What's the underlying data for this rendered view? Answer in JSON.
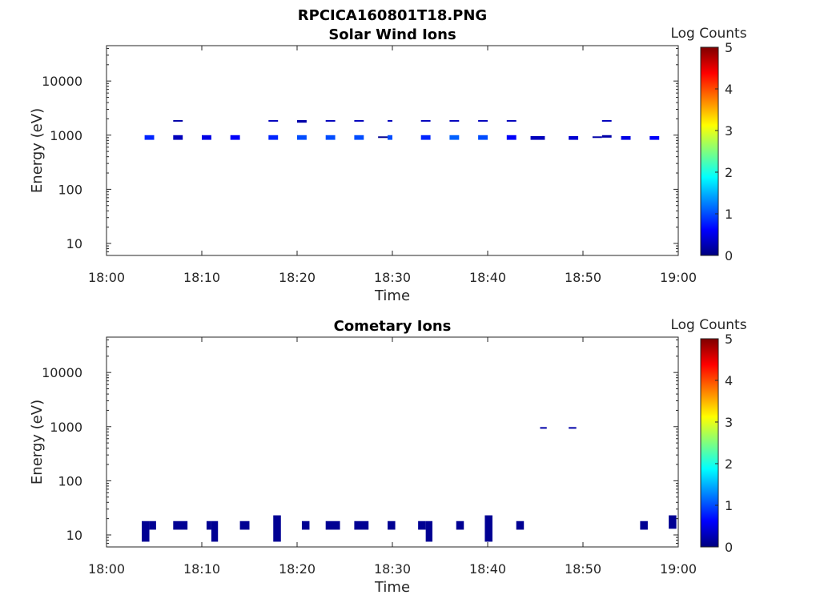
{
  "figure_title": "RPCICA160801T18.PNG",
  "colors": {
    "cmap": [
      "#00007f",
      "#0000ff",
      "#007fff",
      "#00ffff",
      "#7fff7f",
      "#ffff00",
      "#ff7f00",
      "#ff0000",
      "#7f0000"
    ],
    "axis": "#262626"
  },
  "chart_data": [
    {
      "type": "heatmap",
      "title": "Solar Wind Ions",
      "xlabel": "Time",
      "ylabel": "Energy (eV)",
      "xlim": [
        "18:00",
        "19:00"
      ],
      "xticks": [
        "18:00",
        "18:10",
        "18:20",
        "18:30",
        "18:40",
        "18:50",
        "19:00"
      ],
      "yscale": "log",
      "ylim": [
        6,
        45000
      ],
      "yticks": [
        10,
        100,
        1000,
        10000
      ],
      "ytick_labels": [
        "10",
        "100",
        "1000",
        "10000"
      ],
      "colorbar": {
        "label": "Log Counts",
        "range": [
          0,
          5
        ],
        "ticks": [
          "0",
          "1",
          "2",
          "3",
          "4",
          "5"
        ]
      },
      "cells": [
        {
          "t0": "18:04",
          "t1": "18:05",
          "e0": 820,
          "e1": 1000,
          "value": 0.8
        },
        {
          "t0": "18:07",
          "t1": "18:08",
          "e0": 1800,
          "e1": 1900,
          "value": 0.2
        },
        {
          "t0": "18:07",
          "t1": "18:08",
          "e0": 820,
          "e1": 1000,
          "value": 0.3
        },
        {
          "t0": "18:10",
          "t1": "18:11",
          "e0": 820,
          "e1": 1000,
          "value": 0.5
        },
        {
          "t0": "18:13",
          "t1": "18:14",
          "e0": 820,
          "e1": 1000,
          "value": 0.6
        },
        {
          "t0": "18:17",
          "t1": "18:18",
          "e0": 1800,
          "e1": 1900,
          "value": 0.3
        },
        {
          "t0": "18:17",
          "t1": "18:18",
          "e0": 820,
          "e1": 1000,
          "value": 0.8
        },
        {
          "t0": "18:20",
          "t1": "18:21",
          "e0": 1700,
          "e1": 1900,
          "value": 0.2
        },
        {
          "t0": "18:20",
          "t1": "18:21",
          "e0": 820,
          "e1": 1000,
          "value": 1.0
        },
        {
          "t0": "18:23",
          "t1": "18:24",
          "e0": 1800,
          "e1": 1900,
          "value": 0.3
        },
        {
          "t0": "18:23",
          "t1": "18:24",
          "e0": 820,
          "e1": 1000,
          "value": 1.0
        },
        {
          "t0": "18:26",
          "t1": "18:27",
          "e0": 1800,
          "e1": 1900,
          "value": 0.3
        },
        {
          "t0": "18:26",
          "t1": "18:27",
          "e0": 820,
          "e1": 1000,
          "value": 1.0
        },
        {
          "t0": "18:28.5",
          "t1": "18:29.5",
          "e0": 900,
          "e1": 950,
          "value": 0.1
        },
        {
          "t0": "18:29.5",
          "t1": "18:30",
          "e0": 820,
          "e1": 1000,
          "value": 1.0
        },
        {
          "t0": "18:29.5",
          "t1": "18:30",
          "e0": 1800,
          "e1": 1900,
          "value": 0.3
        },
        {
          "t0": "18:33",
          "t1": "18:34",
          "e0": 1800,
          "e1": 1900,
          "value": 0.3
        },
        {
          "t0": "18:33",
          "t1": "18:34",
          "e0": 820,
          "e1": 1000,
          "value": 0.8
        },
        {
          "t0": "18:36",
          "t1": "18:37",
          "e0": 1800,
          "e1": 1900,
          "value": 0.3
        },
        {
          "t0": "18:36",
          "t1": "18:37",
          "e0": 820,
          "e1": 1000,
          "value": 1.1
        },
        {
          "t0": "18:39",
          "t1": "18:40",
          "e0": 1800,
          "e1": 1900,
          "value": 0.3
        },
        {
          "t0": "18:39",
          "t1": "18:40",
          "e0": 820,
          "e1": 1000,
          "value": 1.0
        },
        {
          "t0": "18:42",
          "t1": "18:43",
          "e0": 1800,
          "e1": 1900,
          "value": 0.3
        },
        {
          "t0": "18:42",
          "t1": "18:43",
          "e0": 820,
          "e1": 1000,
          "value": 0.6
        },
        {
          "t0": "18:44.5",
          "t1": "18:46",
          "e0": 820,
          "e1": 960,
          "value": 0.3
        },
        {
          "t0": "18:48.5",
          "t1": "18:49.5",
          "e0": 820,
          "e1": 960,
          "value": 0.4
        },
        {
          "t0": "18:51",
          "t1": "18:52",
          "e0": 900,
          "e1": 950,
          "value": 0.2
        },
        {
          "t0": "18:52",
          "t1": "18:53",
          "e0": 1800,
          "e1": 1900,
          "value": 0.3
        },
        {
          "t0": "18:52",
          "t1": "18:53",
          "e0": 900,
          "e1": 1000,
          "value": 0.2
        },
        {
          "t0": "18:54",
          "t1": "18:55",
          "e0": 820,
          "e1": 960,
          "value": 0.5
        },
        {
          "t0": "18:57",
          "t1": "18:58",
          "e0": 820,
          "e1": 960,
          "value": 0.6
        }
      ]
    },
    {
      "type": "heatmap",
      "title": "Cometary Ions",
      "xlabel": "Time",
      "ylabel": "Energy (eV)",
      "xlim": [
        "18:00",
        "19:00"
      ],
      "xticks": [
        "18:00",
        "18:10",
        "18:20",
        "18:30",
        "18:40",
        "18:50",
        "19:00"
      ],
      "yscale": "log",
      "ylim": [
        6,
        45000
      ],
      "yticks": [
        10,
        100,
        1000,
        10000
      ],
      "ytick_labels": [
        "10",
        "100",
        "1000",
        "10000"
      ],
      "colorbar": {
        "label": "Log Counts",
        "range": [
          0,
          5
        ],
        "ticks": [
          "0",
          "1",
          "2",
          "3",
          "4",
          "5"
        ]
      },
      "cells": [
        {
          "t0": "18:03.7",
          "t1": "18:04.5",
          "e0": 7.5,
          "e1": 18,
          "value": 0.1
        },
        {
          "t0": "18:04.5",
          "t1": "18:05.2",
          "e0": 12.5,
          "e1": 18,
          "value": 0.1
        },
        {
          "t0": "18:07",
          "t1": "18:08.5",
          "e0": 12.5,
          "e1": 18,
          "value": 0.1
        },
        {
          "t0": "18:10.5",
          "t1": "18:11",
          "e0": 12.5,
          "e1": 18,
          "value": 0.1
        },
        {
          "t0": "18:11",
          "t1": "18:11.7",
          "e0": 7.5,
          "e1": 18,
          "value": 0.1
        },
        {
          "t0": "18:14",
          "t1": "18:15",
          "e0": 12.5,
          "e1": 18,
          "value": 0.1
        },
        {
          "t0": "18:17.5",
          "t1": "18:18.3",
          "e0": 7.5,
          "e1": 23,
          "value": 0.1
        },
        {
          "t0": "18:20.5",
          "t1": "18:21.3",
          "e0": 12.5,
          "e1": 18,
          "value": 0.1
        },
        {
          "t0": "18:23",
          "t1": "18:24.5",
          "e0": 12.5,
          "e1": 18,
          "value": 0.1
        },
        {
          "t0": "18:26",
          "t1": "18:27.5",
          "e0": 12.5,
          "e1": 18,
          "value": 0.1
        },
        {
          "t0": "18:29.5",
          "t1": "18:30.3",
          "e0": 12.5,
          "e1": 18,
          "value": 0.1
        },
        {
          "t0": "18:32.7",
          "t1": "18:33.5",
          "e0": 12.5,
          "e1": 18,
          "value": 0.1
        },
        {
          "t0": "18:33.5",
          "t1": "18:34.2",
          "e0": 7.5,
          "e1": 18,
          "value": 0.1
        },
        {
          "t0": "18:36.7",
          "t1": "18:37.5",
          "e0": 12.5,
          "e1": 18,
          "value": 0.1
        },
        {
          "t0": "18:39.7",
          "t1": "18:40.5",
          "e0": 7.5,
          "e1": 23,
          "value": 0.1
        },
        {
          "t0": "18:43",
          "t1": "18:43.8",
          "e0": 12.5,
          "e1": 18,
          "value": 0.1
        },
        {
          "t0": "18:45.5",
          "t1": "18:46.2",
          "e0": 920,
          "e1": 980,
          "value": 0.2
        },
        {
          "t0": "18:48.5",
          "t1": "18:49.3",
          "e0": 920,
          "e1": 980,
          "value": 0.2
        },
        {
          "t0": "18:56",
          "t1": "18:56.8",
          "e0": 12.5,
          "e1": 18,
          "value": 0.1
        },
        {
          "t0": "18:59",
          "t1": "18:59.8",
          "e0": 13,
          "e1": 23,
          "value": 0.1
        }
      ]
    }
  ]
}
